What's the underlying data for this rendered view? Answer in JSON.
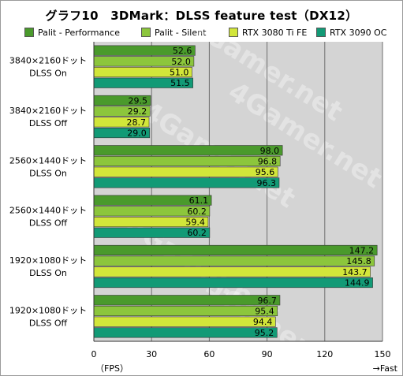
{
  "chart_data": {
    "type": "bar",
    "orientation": "horizontal",
    "title": "グラフ10　3DMark：DLSS feature test（DX12）",
    "categories": [
      [
        "3840×2160ドット",
        "DLSS On"
      ],
      [
        "3840×2160ドット",
        "DLSS Off"
      ],
      [
        "2560×1440ドット",
        "DLSS On"
      ],
      [
        "2560×1440ドット",
        "DLSS Off"
      ],
      [
        "1920×1080ドット",
        "DLSS On"
      ],
      [
        "1920×1080ドット",
        "DLSS Off"
      ]
    ],
    "series": [
      {
        "name": "Palit - Performance",
        "color": "#4a9a2c",
        "values": [
          52.6,
          29.5,
          98.0,
          61.1,
          147.2,
          96.7
        ]
      },
      {
        "name": "Palit - Silent",
        "color": "#8cc63c",
        "values": [
          52.0,
          29.2,
          96.8,
          60.2,
          145.8,
          95.4
        ]
      },
      {
        "name": "RTX 3080 Ti FE",
        "color": "#d2e63a",
        "values": [
          51.0,
          28.7,
          95.6,
          59.4,
          143.7,
          94.4
        ]
      },
      {
        "name": "RTX 3090 OC",
        "color": "#129a76",
        "values": [
          51.5,
          29.0,
          96.3,
          60.2,
          144.9,
          95.2
        ]
      }
    ],
    "xlim": [
      0,
      150
    ],
    "xticks": [
      0,
      30,
      60,
      90,
      120,
      150
    ],
    "xlabel": "（FPS）",
    "axis_note": "→Fast",
    "watermark": "4Gamer.net",
    "grid": true,
    "legend_position": "top"
  }
}
